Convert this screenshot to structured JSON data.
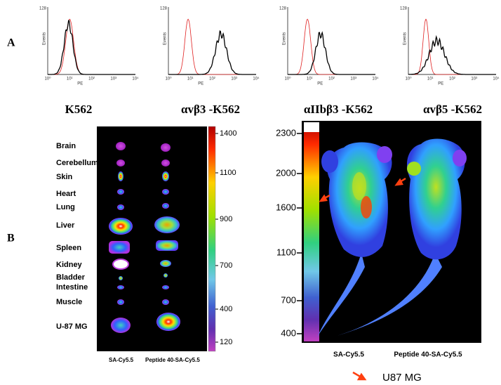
{
  "panel_a": {
    "label": "A",
    "histograms": [
      {
        "y_max_label": "128",
        "y_axis_label": "Events",
        "x_axis_label": "PE",
        "x_tick_labels": [
          "10⁰",
          "10¹",
          "10²",
          "10³",
          "10⁴"
        ],
        "title": "K562"
      },
      {
        "y_max_label": "128",
        "y_axis_label": "Events",
        "x_axis_label": "PE",
        "x_tick_labels": [
          "10⁰",
          "10¹",
          "10²",
          "10³",
          "10⁴"
        ],
        "title": "αvβ3 -K562"
      },
      {
        "y_max_label": "128",
        "y_axis_label": "Events",
        "x_axis_label": "PE",
        "x_tick_labels": [
          "10⁰",
          "10¹",
          "10²",
          "10³",
          "10⁴"
        ],
        "title": "αIIbβ3 -K562"
      },
      {
        "y_max_label": "128",
        "y_axis_label": "Events",
        "x_axis_label": "PE",
        "x_tick_labels": [
          "10⁰",
          "10¹",
          "10²",
          "10³",
          "10⁴"
        ],
        "title": "αvβ5 -K562"
      }
    ]
  },
  "panel_b": {
    "label": "B",
    "organs": [
      "Brain",
      "Cerebellum",
      "Skin",
      "Heart",
      "Lung",
      "Liver",
      "Spleen",
      "Kidney",
      "Bladder",
      "Intestine",
      "Muscle",
      "U-87 MG"
    ],
    "organ_scale_labels": [
      "1400",
      "1100",
      "900",
      "700",
      "400",
      "120"
    ],
    "organ_captions": [
      "SA-Cy5.5",
      "Peptide 40-SA-Cy5.5"
    ],
    "mouse_scale_labels": [
      "2300",
      "2000",
      "1600",
      "1100",
      "700",
      "400"
    ],
    "mouse_captions": [
      "SA-Cy5.5",
      "Peptide 40-SA-Cy5.5"
    ],
    "legend": "U87 MG"
  }
}
